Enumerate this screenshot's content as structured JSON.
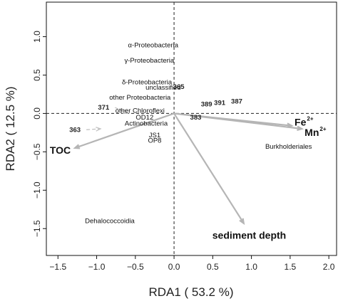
{
  "chart_data": {
    "type": "scatter",
    "xlabel": "RDA1 ( 53.2 %)",
    "ylabel": "RDA2 ( 12.5 %)",
    "xlim": [
      -1.65,
      2.1
    ],
    "ylim": [
      -1.85,
      1.45
    ],
    "xticks": [
      -1.5,
      -1.0,
      -0.5,
      0.0,
      0.5,
      1.0,
      1.5,
      2.0
    ],
    "xtick_labels": [
      "−1.5",
      "−1.0",
      "−0.5",
      "0.0",
      "0.5",
      "1.0",
      "1.5",
      "2.0"
    ],
    "yticks": [
      1.0,
      0.5,
      0.0,
      -0.5,
      -1.0,
      -1.5
    ],
    "ytick_labels": [
      "1.0",
      "0.5",
      "0.0",
      "−0.5",
      "−1.0",
      "−1.5"
    ],
    "reference_lines": {
      "x": 0,
      "y": 0,
      "style": "dashed"
    },
    "taxa": [
      {
        "label": "α-Proteobacteria",
        "x": -0.27,
        "y": 0.86
      },
      {
        "label": "γ-Proteobacteria",
        "x": -0.32,
        "y": 0.66
      },
      {
        "label": "δ-Proteobacteria",
        "x": -0.35,
        "y": 0.38
      },
      {
        "label": "unclassified",
        "x": -0.14,
        "y": 0.31
      },
      {
        "label": "other Proteobacteria",
        "x": -0.44,
        "y": 0.18
      },
      {
        "label": "other Chloroflexi",
        "x": -0.44,
        "y": 0.01
      },
      {
        "label": "OD12",
        "x": -0.38,
        "y": -0.08
      },
      {
        "label": "Actinobacteria",
        "x": -0.36,
        "y": -0.16
      },
      {
        "label": "JS1",
        "x": -0.25,
        "y": -0.31
      },
      {
        "label": "OP8",
        "x": -0.25,
        "y": -0.38
      },
      {
        "label": "Burkholderiales",
        "x": 1.48,
        "y": -0.46
      },
      {
        "label": "Dehalococcoidia",
        "x": -0.83,
        "y": -1.43
      }
    ],
    "sites": [
      {
        "label": "371",
        "x": -0.91,
        "y": 0.05,
        "arrow_to": [
          -0.6,
          0.0
        ]
      },
      {
        "label": "363",
        "x": -1.28,
        "y": -0.24,
        "arrow_to": [
          -0.95,
          -0.2
        ]
      },
      {
        "label": "365",
        "x": 0.06,
        "y": 0.32
      },
      {
        "label": "389",
        "x": 0.42,
        "y": 0.09
      },
      {
        "label": "391",
        "x": 0.59,
        "y": 0.11
      },
      {
        "label": "387",
        "x": 0.81,
        "y": 0.13
      },
      {
        "label": "383",
        "x": 0.28,
        "y": -0.08
      }
    ],
    "environmental_vectors": [
      {
        "label": "Fe",
        "superscript": "2+",
        "x": 1.52,
        "y": -0.16
      },
      {
        "label": "Mn",
        "superscript": "2+",
        "x": 1.65,
        "y": -0.2
      },
      {
        "label": "TOC",
        "x": -1.28,
        "y": -0.45
      },
      {
        "label": "sediment depth",
        "x": 0.9,
        "y": -1.43
      }
    ]
  }
}
